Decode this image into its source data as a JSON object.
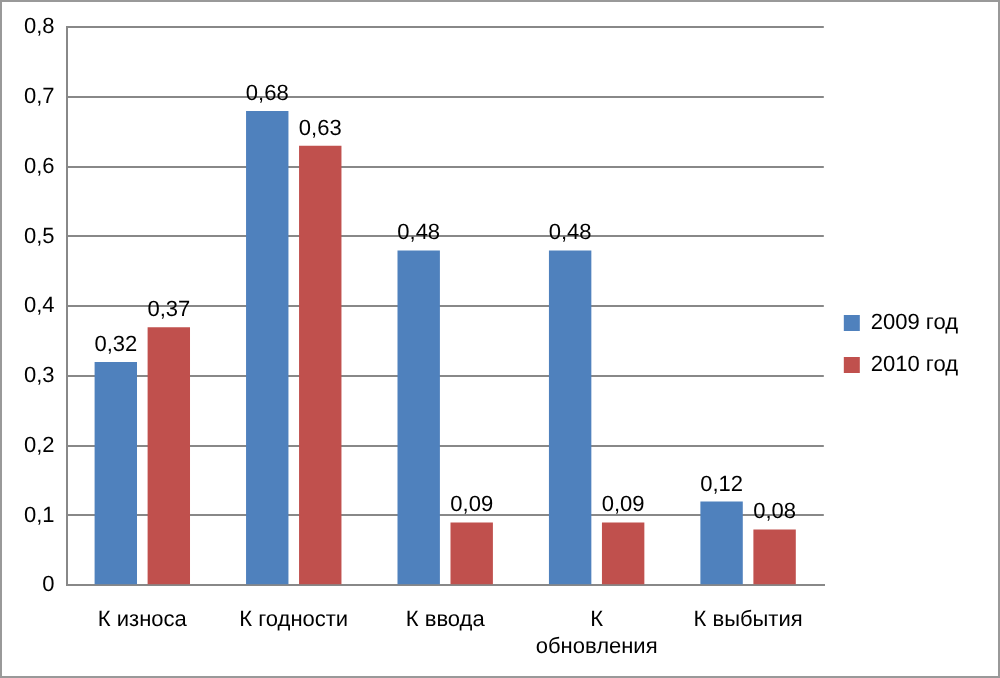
{
  "chart_data": {
    "type": "bar",
    "categories": [
      "К износа",
      "К годности",
      "К ввода",
      "К обновления",
      "К выбытия"
    ],
    "series": [
      {
        "name": "2009 год",
        "color": "#4f81bd",
        "values": [
          0.32,
          0.68,
          0.48,
          0.48,
          0.12
        ],
        "value_labels": [
          "0,32",
          "0,68",
          "0,48",
          "0,48",
          "0,12"
        ]
      },
      {
        "name": "2010 год",
        "color": "#c0504d",
        "values": [
          0.37,
          0.63,
          0.09,
          0.09,
          0.08
        ],
        "value_labels": [
          "0,37",
          "0,63",
          "0,09",
          "0,09",
          "0,08"
        ]
      }
    ],
    "ylim": [
      0,
      0.8
    ],
    "yticks": [
      {
        "value": 0,
        "label": "0"
      },
      {
        "value": 0.1,
        "label": "0,1"
      },
      {
        "value": 0.2,
        "label": "0,2"
      },
      {
        "value": 0.3,
        "label": "0,3"
      },
      {
        "value": 0.4,
        "label": "0,4"
      },
      {
        "value": 0.5,
        "label": "0,5"
      },
      {
        "value": 0.6,
        "label": "0,6"
      },
      {
        "value": 0.7,
        "label": "0,7"
      },
      {
        "value": 0.8,
        "label": "0,8"
      }
    ],
    "grid": "y",
    "legend": "right"
  }
}
